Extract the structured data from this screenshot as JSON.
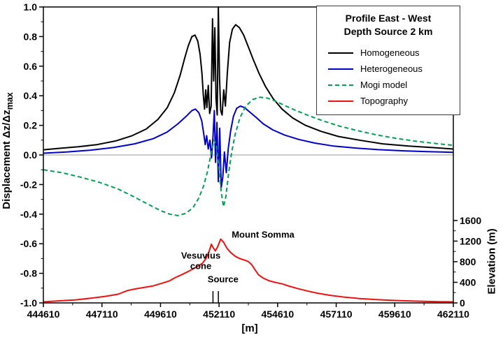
{
  "figure": {
    "background": "#ffffff"
  },
  "chart_data": {
    "type": "line",
    "title": "",
    "legend": {
      "title_line1": "Profile East - West",
      "title_line2": "Depth Source 2 km",
      "position": "top-right",
      "entries": [
        {
          "label": "Homogeneous",
          "color": "#000000",
          "style": "solid"
        },
        {
          "label": "Heterogeneous",
          "color": "#0000C8",
          "style": "solid"
        },
        {
          "label": "Mogi model",
          "color": "#00A050",
          "style": "dashed"
        },
        {
          "label": "Topography",
          "color": "#EE1111",
          "style": "solid"
        }
      ]
    },
    "x_axis": {
      "label": "[m]",
      "range": [
        444610,
        462110
      ],
      "tick_values": [
        444610,
        447110,
        449610,
        452110,
        454610,
        457110,
        459610,
        462110
      ],
      "tick_labels": [
        "444610",
        "447110",
        "449610",
        "452110",
        "454610",
        "457110",
        "459610",
        "462110"
      ],
      "minor_step": 1250
    },
    "y_axis_left": {
      "label_main": "Displacement Δz/Δz",
      "label_sub": "max",
      "range": [
        -1.0,
        1.0
      ],
      "tick_values": [
        -1.0,
        -0.8,
        -0.6,
        -0.4,
        -0.2,
        0.0,
        0.2,
        0.4,
        0.6,
        0.8,
        1.0
      ],
      "tick_labels": [
        "-1.0",
        "-0.8",
        "-0.6",
        "-0.4",
        "-0.2",
        "0.0",
        "0.2",
        "0.4",
        "0.6",
        "0.8",
        "1.0"
      ],
      "minor_step": 0.1
    },
    "y_axis_right": {
      "label": "Elevation (m)",
      "range": [
        0,
        1600
      ],
      "tick_values": [
        0,
        400,
        800,
        1200,
        1600
      ],
      "tick_labels": [
        "0",
        "400",
        "800",
        "1200",
        "1600"
      ],
      "minor_step": 200,
      "maps_to_left": [
        -1.0,
        -0.443
      ]
    },
    "zero_line": {
      "y": 0.0,
      "color": "#999999"
    },
    "series": [
      {
        "id": "homogeneous",
        "name": "Homogeneous",
        "color": "#000000",
        "style": "solid",
        "axis": "left",
        "points": [
          [
            444610,
            0.035
          ],
          [
            445300,
            0.045
          ],
          [
            446100,
            0.055
          ],
          [
            446900,
            0.07
          ],
          [
            447700,
            0.095
          ],
          [
            448400,
            0.13
          ],
          [
            449000,
            0.175
          ],
          [
            449500,
            0.24
          ],
          [
            449900,
            0.32
          ],
          [
            450200,
            0.42
          ],
          [
            450450,
            0.54
          ],
          [
            450650,
            0.66
          ],
          [
            450800,
            0.74
          ],
          [
            450950,
            0.8
          ],
          [
            451080,
            0.81
          ],
          [
            451200,
            0.77
          ],
          [
            451300,
            0.68
          ],
          [
            451380,
            0.55
          ],
          [
            451440,
            0.4
          ],
          [
            451490,
            0.31
          ],
          [
            451540,
            0.44
          ],
          [
            451590,
            0.32
          ],
          [
            451650,
            0.47
          ],
          [
            451710,
            0.28
          ],
          [
            451770,
            0.33
          ],
          [
            451830,
            0.92
          ],
          [
            451880,
            0.5
          ],
          [
            451930,
            0.86
          ],
          [
            451980,
            0.38
          ],
          [
            452030,
            0.27
          ],
          [
            452080,
            1.0
          ],
          [
            452130,
            0.52
          ],
          [
            452180,
            0.3
          ],
          [
            452240,
            0.27
          ],
          [
            452310,
            0.44
          ],
          [
            452380,
            0.33
          ],
          [
            452460,
            0.55
          ],
          [
            452560,
            0.76
          ],
          [
            452680,
            0.85
          ],
          [
            452820,
            0.88
          ],
          [
            452980,
            0.86
          ],
          [
            453160,
            0.81
          ],
          [
            453360,
            0.73
          ],
          [
            453580,
            0.64
          ],
          [
            453820,
            0.55
          ],
          [
            454100,
            0.46
          ],
          [
            454420,
            0.38
          ],
          [
            454800,
            0.31
          ],
          [
            455250,
            0.25
          ],
          [
            455800,
            0.2
          ],
          [
            456450,
            0.16
          ],
          [
            457200,
            0.125
          ],
          [
            458100,
            0.1
          ],
          [
            459100,
            0.075
          ],
          [
            460200,
            0.06
          ],
          [
            461200,
            0.05
          ],
          [
            462110,
            0.04
          ]
        ]
      },
      {
        "id": "heterogeneous",
        "name": "Heterogeneous",
        "color": "#0000C8",
        "style": "solid",
        "axis": "left",
        "points": [
          [
            444610,
            0.012
          ],
          [
            445600,
            0.02
          ],
          [
            446600,
            0.032
          ],
          [
            447600,
            0.05
          ],
          [
            448500,
            0.075
          ],
          [
            449300,
            0.11
          ],
          [
            449900,
            0.155
          ],
          [
            450350,
            0.21
          ],
          [
            450700,
            0.26
          ],
          [
            450950,
            0.3
          ],
          [
            451100,
            0.31
          ],
          [
            451250,
            0.285
          ],
          [
            451370,
            0.23
          ],
          [
            451450,
            0.15
          ],
          [
            451520,
            0.07
          ],
          [
            451580,
            0.13
          ],
          [
            451650,
            0.04
          ],
          [
            451720,
            0.1
          ],
          [
            451790,
            -0.02
          ],
          [
            451850,
            0.12
          ],
          [
            451910,
            0.3
          ],
          [
            451960,
            -0.05
          ],
          [
            452020,
            0.22
          ],
          [
            452080,
            -0.18
          ],
          [
            452140,
            0.18
          ],
          [
            452200,
            -0.22
          ],
          [
            452270,
            -0.15
          ],
          [
            452340,
            0.02
          ],
          [
            452420,
            -0.12
          ],
          [
            452500,
            0.04
          ],
          [
            452600,
            0.16
          ],
          [
            452720,
            0.26
          ],
          [
            452860,
            0.315
          ],
          [
            453020,
            0.33
          ],
          [
            453200,
            0.32
          ],
          [
            453420,
            0.29
          ],
          [
            453680,
            0.255
          ],
          [
            454000,
            0.21
          ],
          [
            454400,
            0.17
          ],
          [
            454900,
            0.135
          ],
          [
            455500,
            0.105
          ],
          [
            456200,
            0.08
          ],
          [
            457000,
            0.06
          ],
          [
            457900,
            0.047
          ],
          [
            458900,
            0.036
          ],
          [
            460000,
            0.028
          ],
          [
            461000,
            0.022
          ],
          [
            462110,
            0.018
          ]
        ]
      },
      {
        "id": "mogi-model",
        "name": "Mogi model",
        "color": "#00A050",
        "style": "dashed",
        "axis": "left",
        "points": [
          [
            444610,
            -0.1
          ],
          [
            445400,
            -0.12
          ],
          [
            446200,
            -0.15
          ],
          [
            447000,
            -0.185
          ],
          [
            447800,
            -0.23
          ],
          [
            448500,
            -0.285
          ],
          [
            449100,
            -0.335
          ],
          [
            449600,
            -0.375
          ],
          [
            450000,
            -0.4
          ],
          [
            450350,
            -0.41
          ],
          [
            450700,
            -0.395
          ],
          [
            451000,
            -0.355
          ],
          [
            451250,
            -0.29
          ],
          [
            451450,
            -0.21
          ],
          [
            451620,
            -0.11
          ],
          [
            451780,
            0.02
          ],
          [
            451900,
            0.1
          ],
          [
            452000,
            0.06
          ],
          [
            452100,
            -0.08
          ],
          [
            452200,
            -0.25
          ],
          [
            452300,
            -0.35
          ],
          [
            452400,
            -0.28
          ],
          [
            452520,
            -0.12
          ],
          [
            452650,
            0.02
          ],
          [
            452800,
            0.14
          ],
          [
            453000,
            0.25
          ],
          [
            453250,
            0.33
          ],
          [
            453550,
            0.375
          ],
          [
            453850,
            0.39
          ],
          [
            454150,
            0.385
          ],
          [
            454500,
            0.365
          ],
          [
            454900,
            0.335
          ],
          [
            455400,
            0.3
          ],
          [
            455950,
            0.265
          ],
          [
            456550,
            0.23
          ],
          [
            457250,
            0.195
          ],
          [
            458000,
            0.165
          ],
          [
            458850,
            0.135
          ],
          [
            459750,
            0.11
          ],
          [
            460650,
            0.09
          ],
          [
            461500,
            0.075
          ],
          [
            462110,
            0.065
          ]
        ]
      },
      {
        "id": "topography",
        "name": "Topography",
        "color": "#EE1111",
        "style": "solid",
        "axis": "right",
        "points": [
          [
            444610,
            20
          ],
          [
            445300,
            40
          ],
          [
            446000,
            60
          ],
          [
            446700,
            95
          ],
          [
            447300,
            130
          ],
          [
            447800,
            170
          ],
          [
            448200,
            240
          ],
          [
            448500,
            270
          ],
          [
            448900,
            300
          ],
          [
            449300,
            330
          ],
          [
            449700,
            385
          ],
          [
            450000,
            430
          ],
          [
            450250,
            495
          ],
          [
            450500,
            545
          ],
          [
            450750,
            600
          ],
          [
            451000,
            660
          ],
          [
            451200,
            710
          ],
          [
            451400,
            770
          ],
          [
            451550,
            860
          ],
          [
            451680,
            990
          ],
          [
            451780,
            1140
          ],
          [
            451850,
            1080
          ],
          [
            451950,
            1010
          ],
          [
            452050,
            1090
          ],
          [
            452180,
            1240
          ],
          [
            452300,
            1180
          ],
          [
            452450,
            1060
          ],
          [
            452600,
            980
          ],
          [
            452800,
            905
          ],
          [
            453000,
            860
          ],
          [
            453200,
            830
          ],
          [
            453350,
            805
          ],
          [
            453500,
            745
          ],
          [
            453650,
            640
          ],
          [
            453800,
            545
          ],
          [
            454000,
            480
          ],
          [
            454250,
            430
          ],
          [
            454500,
            400
          ],
          [
            454800,
            370
          ],
          [
            455100,
            325
          ],
          [
            455450,
            280
          ],
          [
            455850,
            235
          ],
          [
            456300,
            190
          ],
          [
            456800,
            150
          ],
          [
            457400,
            115
          ],
          [
            458100,
            85
          ],
          [
            458900,
            62
          ],
          [
            459800,
            45
          ],
          [
            460700,
            32
          ],
          [
            461500,
            25
          ],
          [
            462110,
            20
          ]
        ]
      }
    ],
    "annotations": [
      {
        "id": "mount-somma",
        "text": "Mount Somma",
        "x": 452650,
        "y": -0.56,
        "anchor": "start"
      },
      {
        "id": "vesuvius-cone",
        "text": "Vesuvius\ncone",
        "x": 451330,
        "y": -0.7,
        "anchor": "middle"
      },
      {
        "id": "source",
        "text": "Source",
        "x": 452280,
        "y": -0.86,
        "anchor": "middle"
      }
    ],
    "source_markers": {
      "x_values": [
        451850,
        452080
      ],
      "y_top": -0.92,
      "y_bottom": -1.0
    }
  }
}
